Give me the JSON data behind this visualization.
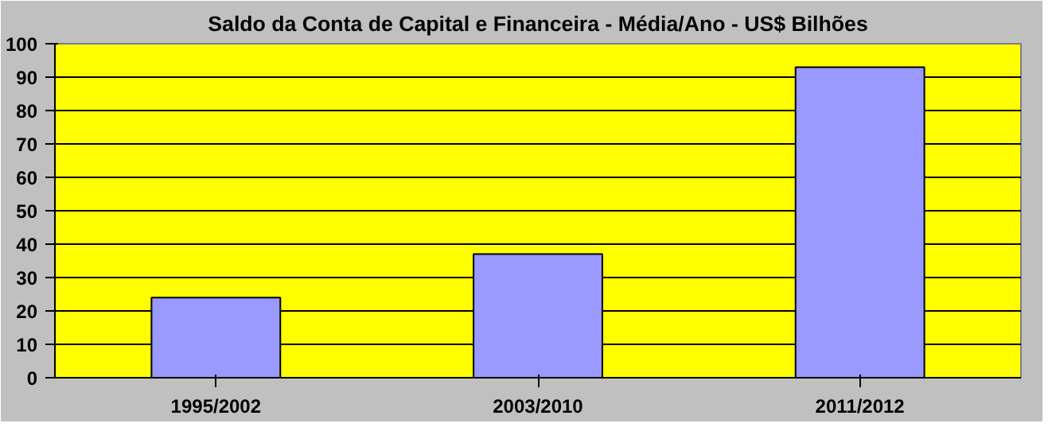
{
  "chart_data": {
    "type": "bar",
    "title": "Saldo da Conta de Capital e Financeira - Média/Ano - US$ Bilhões",
    "categories": [
      "1995/2002",
      "2003/2010",
      "2011/2012"
    ],
    "values": [
      24,
      37,
      93
    ],
    "color": "#9999ff",
    "ylim": [
      0,
      100
    ],
    "yticks": [
      0,
      10,
      20,
      30,
      40,
      50,
      60,
      70,
      80,
      90,
      100
    ],
    "grid": "y"
  }
}
